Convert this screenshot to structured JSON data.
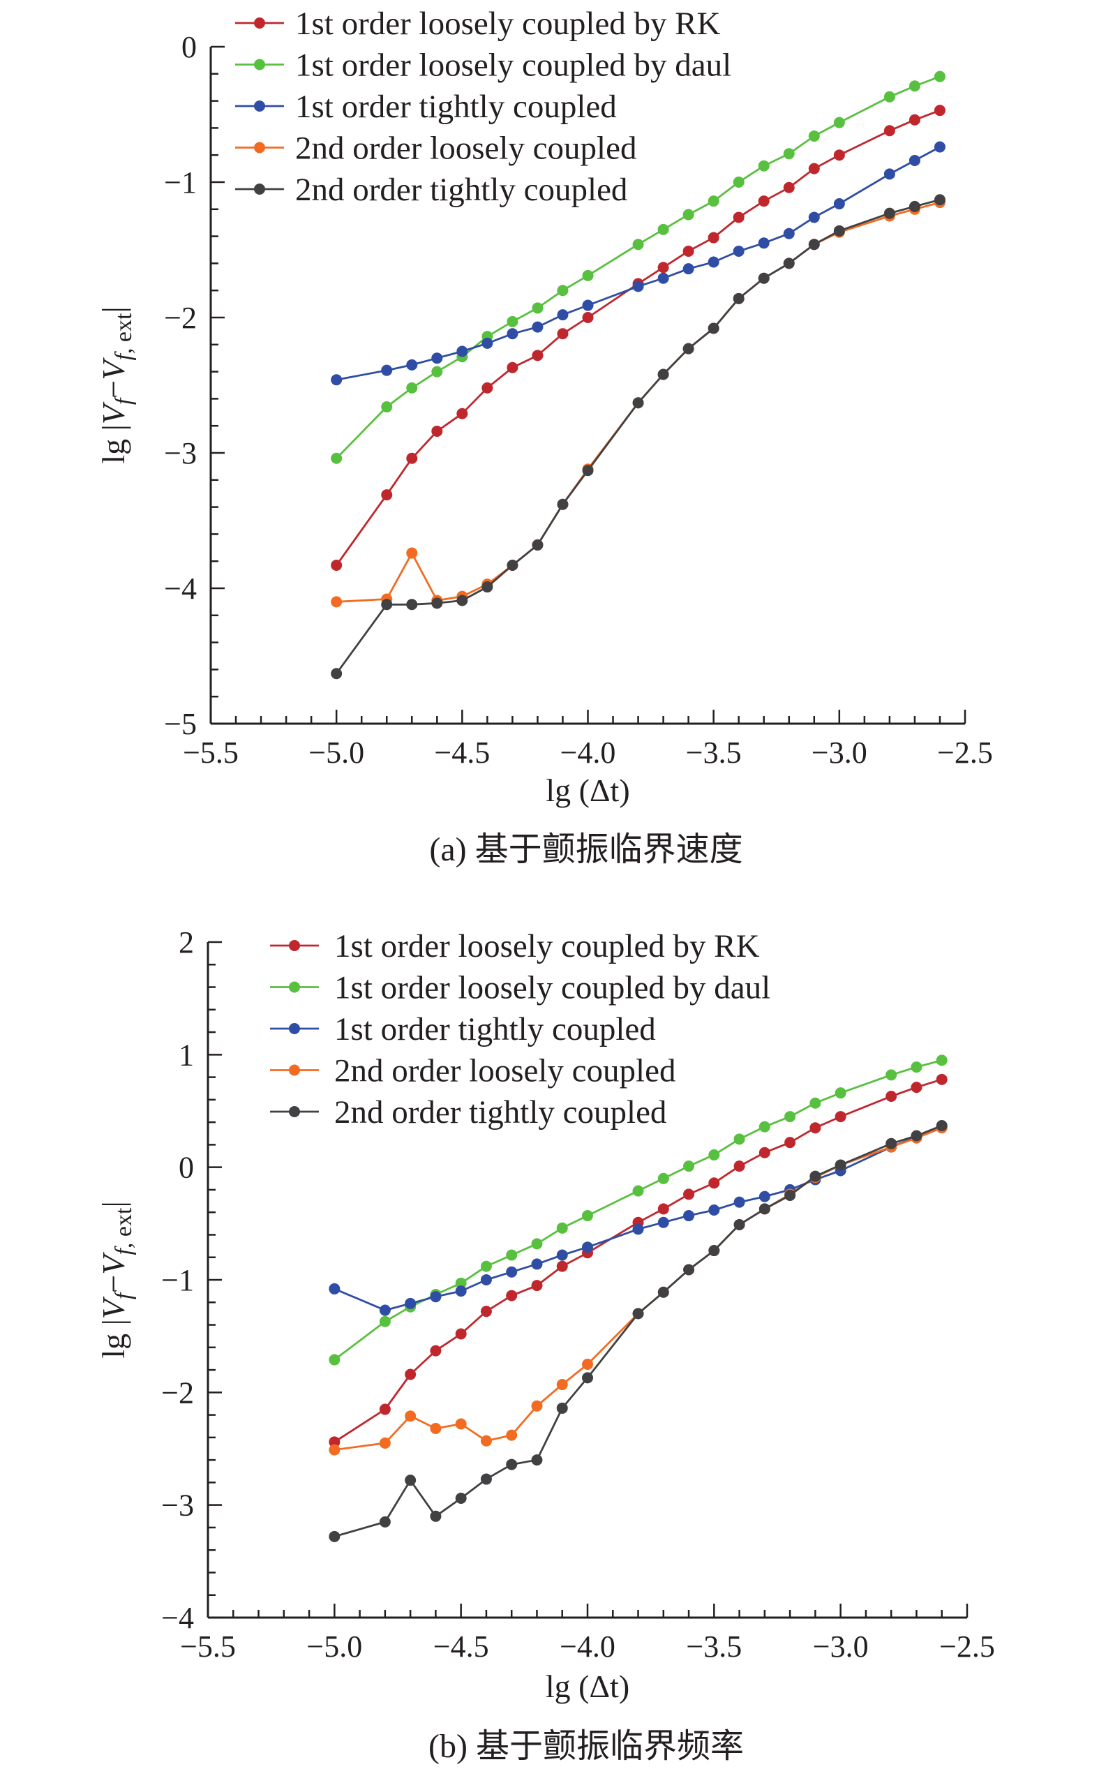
{
  "colors": {
    "rk": "#c0272d",
    "daul": "#58c03f",
    "tight1": "#2f4da4",
    "loose2": "#f26b21",
    "tight2": "#414042"
  },
  "chart_data": [
    {
      "type": "line",
      "caption": "(a) 基于颤振临界速度",
      "xlabel": "lg (Δt)",
      "ylabel": "lg |Vf−Vf, ext|",
      "xlim": [
        -5.5,
        -2.5
      ],
      "ylim": [
        -5,
        0
      ],
      "xticks": [
        -5.5,
        -5.0,
        -4.5,
        -4.0,
        -3.5,
        -3.0,
        -2.5
      ],
      "xtick_labels": [
        "−5.5",
        "−5.0",
        "−4.5",
        "−4.0",
        "−3.5",
        "−3.0",
        "−2.5"
      ],
      "yticks": [
        0,
        -1,
        -2,
        -3,
        -4,
        -5
      ],
      "ytick_labels": [
        "0",
        "−1",
        "−2",
        "−3",
        "−4",
        "−5"
      ],
      "legend_position": "top-left",
      "x": [
        -5.0,
        -4.8,
        -4.7,
        -4.6,
        -4.5,
        -4.4,
        -4.3,
        -4.2,
        -4.1,
        -4.0,
        -3.8,
        -3.7,
        -3.6,
        -3.5,
        -3.4,
        -3.3,
        -3.2,
        -3.1,
        -3.0,
        -2.8,
        -2.7,
        -2.6
      ],
      "series": [
        {
          "name": "1st order loosely coupled by RK",
          "color_key": "rk",
          "values": [
            -3.83,
            -3.31,
            -3.04,
            -2.84,
            -2.71,
            -2.52,
            -2.37,
            -2.28,
            -2.12,
            -2.0,
            -1.75,
            -1.63,
            -1.51,
            -1.41,
            -1.26,
            -1.14,
            -1.04,
            -0.9,
            -0.8,
            -0.62,
            -0.54,
            -0.47
          ]
        },
        {
          "name": "1st order loosely coupled by daul",
          "color_key": "daul",
          "values": [
            -3.04,
            -2.66,
            -2.52,
            -2.4,
            -2.29,
            -2.14,
            -2.03,
            -1.93,
            -1.8,
            -1.69,
            -1.46,
            -1.35,
            -1.24,
            -1.14,
            -1.0,
            -0.88,
            -0.79,
            -0.66,
            -0.56,
            -0.37,
            -0.29,
            -0.22
          ]
        },
        {
          "name": "1st order tightly coupled",
          "color_key": "tight1",
          "values": [
            -2.46,
            -2.39,
            -2.35,
            -2.3,
            -2.25,
            -2.19,
            -2.12,
            -2.07,
            -1.98,
            -1.91,
            -1.77,
            -1.71,
            -1.64,
            -1.59,
            -1.51,
            -1.45,
            -1.38,
            -1.26,
            -1.16,
            -0.94,
            -0.84,
            -0.74
          ]
        },
        {
          "name": "2nd order loosely coupled",
          "color_key": "loose2",
          "values": [
            -4.1,
            -4.08,
            -3.74,
            -4.09,
            -4.06,
            -3.97,
            -3.83,
            -3.68,
            -3.38,
            -3.12,
            -2.63,
            -2.42,
            -2.23,
            -2.08,
            -1.86,
            -1.71,
            -1.6,
            -1.46,
            -1.37,
            -1.25,
            -1.2,
            -1.15
          ]
        },
        {
          "name": "2nd order tightly coupled",
          "color_key": "tight2",
          "values": [
            -4.63,
            -4.12,
            -4.12,
            -4.11,
            -4.09,
            -3.99,
            -3.83,
            -3.68,
            -3.38,
            -3.13,
            -2.63,
            -2.42,
            -2.23,
            -2.08,
            -1.86,
            -1.71,
            -1.6,
            -1.46,
            -1.36,
            -1.23,
            -1.18,
            -1.13
          ]
        }
      ]
    },
    {
      "type": "line",
      "caption": "(b) 基于颤振临界频率",
      "xlabel": "lg (Δt)",
      "ylabel": "lg |Vf−Vf, ext|",
      "xlim": [
        -5.5,
        -2.5
      ],
      "ylim": [
        -4,
        2
      ],
      "xticks": [
        -5.5,
        -5.0,
        -4.5,
        -4.0,
        -3.5,
        -3.0,
        -2.5
      ],
      "xtick_labels": [
        "−5.5",
        "−5.0",
        "−4.5",
        "−4.0",
        "−3.5",
        "−3.0",
        "−2.5"
      ],
      "yticks": [
        2,
        1,
        0,
        -1,
        -2,
        -3,
        -4
      ],
      "ytick_labels": [
        "2",
        "1",
        "0",
        "−1",
        "−2",
        "−3",
        "−4"
      ],
      "legend_position": "top-right",
      "x": [
        -5.0,
        -4.8,
        -4.7,
        -4.6,
        -4.5,
        -4.4,
        -4.3,
        -4.2,
        -4.1,
        -4.0,
        -3.8,
        -3.7,
        -3.6,
        -3.5,
        -3.4,
        -3.3,
        -3.2,
        -3.1,
        -3.0,
        -2.8,
        -2.7,
        -2.6
      ],
      "series": [
        {
          "name": "1st order loosely coupled by RK",
          "color_key": "rk",
          "values": [
            -2.44,
            -2.15,
            -1.84,
            -1.63,
            -1.48,
            -1.28,
            -1.14,
            -1.05,
            -0.88,
            -0.76,
            -0.49,
            -0.37,
            -0.24,
            -0.14,
            0.01,
            0.13,
            0.22,
            0.35,
            0.45,
            0.63,
            0.71,
            0.78
          ]
        },
        {
          "name": "1st order loosely coupled by daul",
          "color_key": "daul",
          "values": [
            -1.71,
            -1.37,
            -1.24,
            -1.13,
            -1.03,
            -0.88,
            -0.78,
            -0.68,
            -0.54,
            -0.43,
            -0.21,
            -0.1,
            0.01,
            0.11,
            0.25,
            0.36,
            0.45,
            0.57,
            0.66,
            0.82,
            0.89,
            0.95
          ]
        },
        {
          "name": "1st order tightly coupled",
          "color_key": "tight1",
          "values": [
            -1.08,
            -1.27,
            -1.21,
            -1.15,
            -1.1,
            -1.0,
            -0.93,
            -0.86,
            -0.78,
            -0.71,
            -0.55,
            -0.49,
            -0.43,
            -0.38,
            -0.31,
            -0.26,
            -0.2,
            -0.11,
            -0.03,
            0.18,
            0.27,
            0.36
          ]
        },
        {
          "name": "2nd order loosely coupled",
          "color_key": "loose2",
          "values": [
            -2.51,
            -2.45,
            -2.21,
            -2.32,
            -2.28,
            -2.43,
            -2.38,
            -2.12,
            -1.93,
            -1.75,
            -1.3,
            -1.11,
            -0.91,
            -0.74,
            -0.51,
            -0.37,
            -0.24,
            -0.09,
            0.02,
            0.18,
            0.26,
            0.35
          ]
        },
        {
          "name": "2nd order tightly coupled",
          "color_key": "tight2",
          "values": [
            -3.28,
            -3.15,
            -2.78,
            -3.1,
            -2.94,
            -2.77,
            -2.64,
            -2.6,
            -2.14,
            -1.87,
            -1.3,
            -1.11,
            -0.91,
            -0.74,
            -0.51,
            -0.37,
            -0.25,
            -0.08,
            0.02,
            0.21,
            0.28,
            0.37
          ]
        }
      ]
    }
  ]
}
